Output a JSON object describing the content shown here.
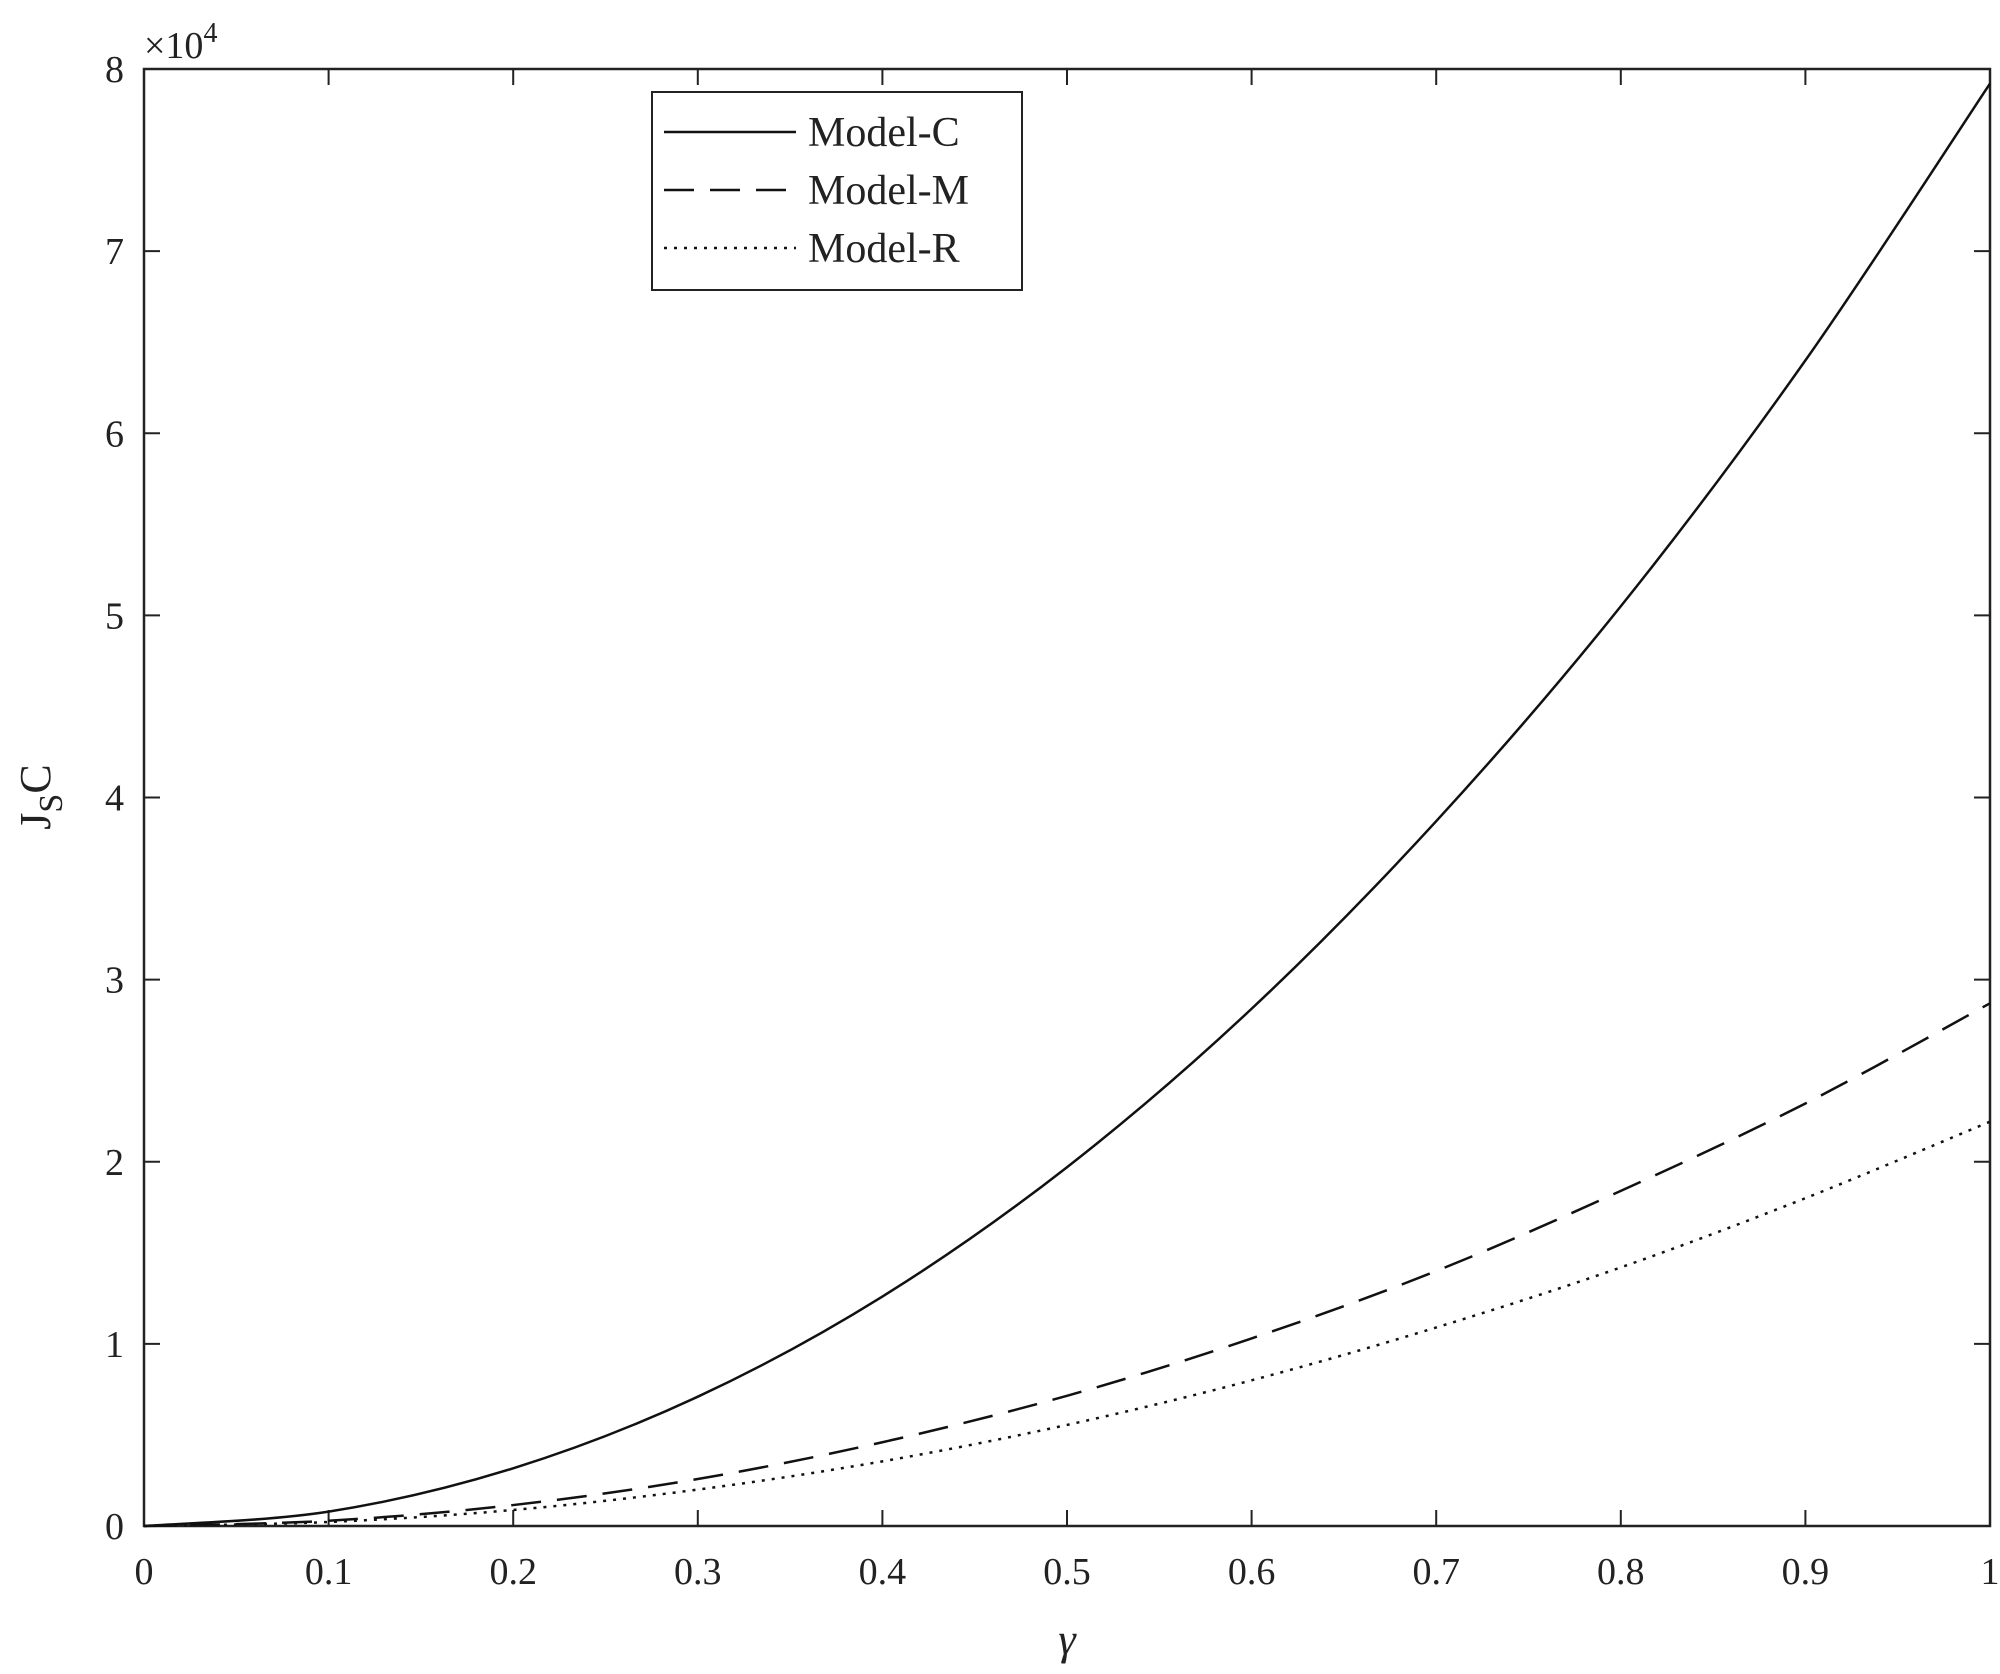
{
  "chart_data": {
    "type": "line",
    "title": "",
    "xlabel": "γ",
    "ylabel": "J_S C",
    "ylabel_main": "J",
    "ylabel_sub": "S",
    "ylabel_tail": "C",
    "y_multiplier_base": "×10",
    "y_multiplier_exp": "4",
    "xlim": [
      0,
      1
    ],
    "ylim": [
      0,
      80000
    ],
    "x_ticks": [
      0,
      0.1,
      0.2,
      0.3,
      0.4,
      0.5,
      0.6,
      0.7,
      0.8,
      0.9,
      1
    ],
    "x_tick_labels": [
      "0",
      "0.1",
      "0.2",
      "0.3",
      "0.4",
      "0.5",
      "0.6",
      "0.7",
      "0.8",
      "0.9",
      "1"
    ],
    "y_ticks": [
      0,
      10000,
      20000,
      30000,
      40000,
      50000,
      60000,
      70000,
      80000
    ],
    "y_tick_labels": [
      "0",
      "1",
      "2",
      "3",
      "4",
      "5",
      "6",
      "7",
      "8"
    ],
    "grid": false,
    "legend_position": "top-center",
    "x": [
      0,
      0.1,
      0.2,
      0.3,
      0.4,
      0.5,
      0.6,
      0.7,
      0.8,
      0.9,
      1.0
    ],
    "series": [
      {
        "name": "Model-C",
        "style": "solid",
        "values": [
          0,
          790,
          3170,
          7100,
          12600,
          19700,
          28400,
          38700,
          50500,
          64000,
          79200
        ]
      },
      {
        "name": "Model-M",
        "style": "dashed",
        "values": [
          0,
          290,
          1150,
          2580,
          4600,
          7150,
          10300,
          14000,
          18400,
          23200,
          28700
        ]
      },
      {
        "name": "Model-R",
        "style": "dotted",
        "values": [
          0,
          220,
          880,
          2000,
          3550,
          5550,
          8000,
          10900,
          14200,
          18000,
          22200
        ]
      }
    ]
  }
}
